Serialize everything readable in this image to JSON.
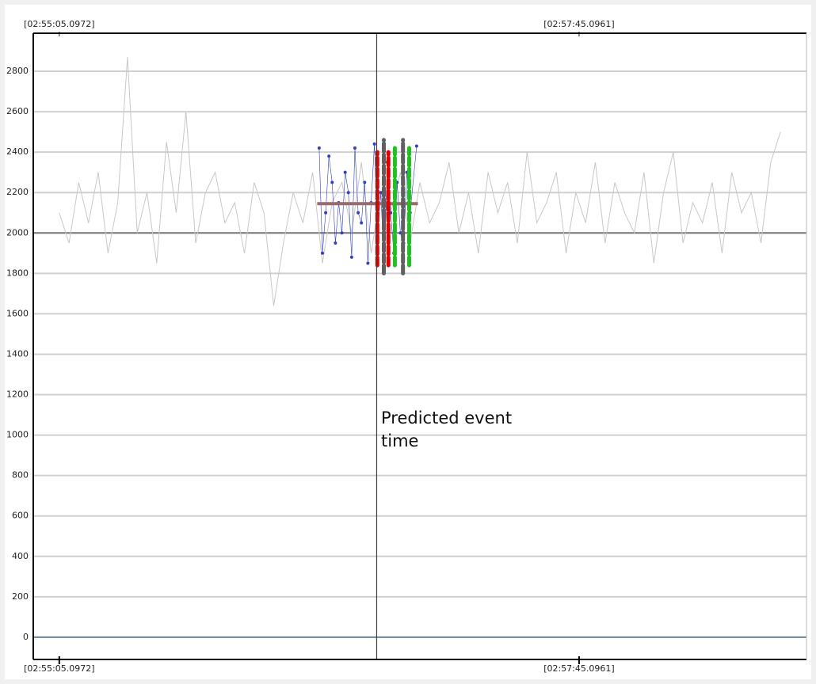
{
  "chart_data": {
    "type": "line",
    "xlim": [
      -8,
      230
    ],
    "ylim": [
      -110,
      2988
    ],
    "xticks": [
      {
        "value": 0,
        "label": "[02:55:05.0972]"
      },
      {
        "value": 160,
        "label": "[02:57:45.0961]"
      }
    ],
    "yticks": [
      0,
      200,
      400,
      600,
      800,
      1000,
      1200,
      1400,
      1600,
      1800,
      2000,
      2200,
      2400,
      2600,
      2800
    ],
    "grid": true,
    "series": [
      {
        "color": "#c8c8c8",
        "marker": "none",
        "x": [
          0,
          3,
          6,
          9,
          12,
          15,
          18,
          21,
          24,
          27,
          30,
          33,
          36,
          39,
          42,
          45,
          48,
          51,
          54,
          57,
          60,
          63,
          66,
          69,
          72,
          75,
          78,
          81,
          84,
          87,
          90,
          93,
          96,
          99,
          102,
          105,
          108,
          111,
          114,
          117,
          120,
          123,
          126,
          129,
          132,
          135,
          138,
          141,
          144,
          147,
          150,
          153,
          156,
          159,
          162,
          165,
          168,
          171,
          174,
          177,
          180,
          183,
          186,
          189,
          192,
          195,
          198,
          201,
          204,
          207,
          210,
          213,
          216,
          219,
          222
        ],
        "values": [
          2100,
          1950,
          2250,
          2050,
          2300,
          1900,
          2150,
          2870,
          2000,
          2200,
          1850,
          2450,
          2100,
          2600,
          1950,
          2200,
          2300,
          2050,
          2150,
          1900,
          2250,
          2100,
          1640,
          1950,
          2200,
          2050,
          2300,
          1850,
          2150,
          2250,
          2000,
          2350,
          1900,
          2200,
          2100,
          2300,
          1950,
          2250,
          2050,
          2150,
          2350,
          2000,
          2200,
          1900,
          2300,
          2100,
          2250,
          1950,
          2400,
          2050,
          2150,
          2300,
          1900,
          2200,
          2050,
          2350,
          1950,
          2250,
          2100,
          2000,
          2300,
          1850,
          2200,
          2400,
          1950,
          2150,
          2050,
          2250,
          1900,
          2300,
          2100,
          2200,
          1950,
          2350,
          2500
        ]
      },
      {
        "color": "#3040c0",
        "marker": "dot",
        "x": [
          80,
          81,
          82,
          83,
          84,
          85,
          86,
          87,
          88,
          89,
          90,
          91,
          92,
          93,
          94,
          95,
          96,
          97,
          98,
          99,
          100,
          101,
          102,
          103,
          104,
          105,
          106,
          107,
          108,
          110
        ],
        "values": [
          2420,
          1900,
          2100,
          2380,
          2250,
          1950,
          2150,
          2000,
          2300,
          2200,
          1880,
          2420,
          2100,
          2050,
          2250,
          1850,
          2150,
          2440,
          2000,
          2200,
          1820,
          2350,
          2100,
          1900,
          2250,
          2000,
          1950,
          2300,
          2100,
          2430
        ]
      }
    ],
    "event_markers": [
      {
        "x": 97.9,
        "color": "#e00000",
        "y": [
          1840,
          2400
        ]
      },
      {
        "x": 99.9,
        "color": "#606060",
        "y": [
          1800,
          2460
        ]
      },
      {
        "x": 101.3,
        "color": "#e00000",
        "y": [
          1840,
          2400
        ]
      },
      {
        "x": 103.3,
        "color": "#20c020",
        "y": [
          1840,
          2420
        ]
      },
      {
        "x": 105.8,
        "color": "#606060",
        "y": [
          1800,
          2460
        ]
      },
      {
        "x": 107.7,
        "color": "#20c020",
        "y": [
          1840,
          2420
        ]
      }
    ],
    "mean_line": {
      "y": 2145,
      "x": [
        79.4,
        110.4
      ],
      "color": "#9a6a6a"
    },
    "reference_line": {
      "y": 2000,
      "color": "#7a7a7a"
    },
    "baseline": {
      "y": 0,
      "color": "#6e8a9a"
    },
    "event_line": {
      "x": 97.7,
      "color": "#404040"
    },
    "annotation": "Predicted event time"
  }
}
